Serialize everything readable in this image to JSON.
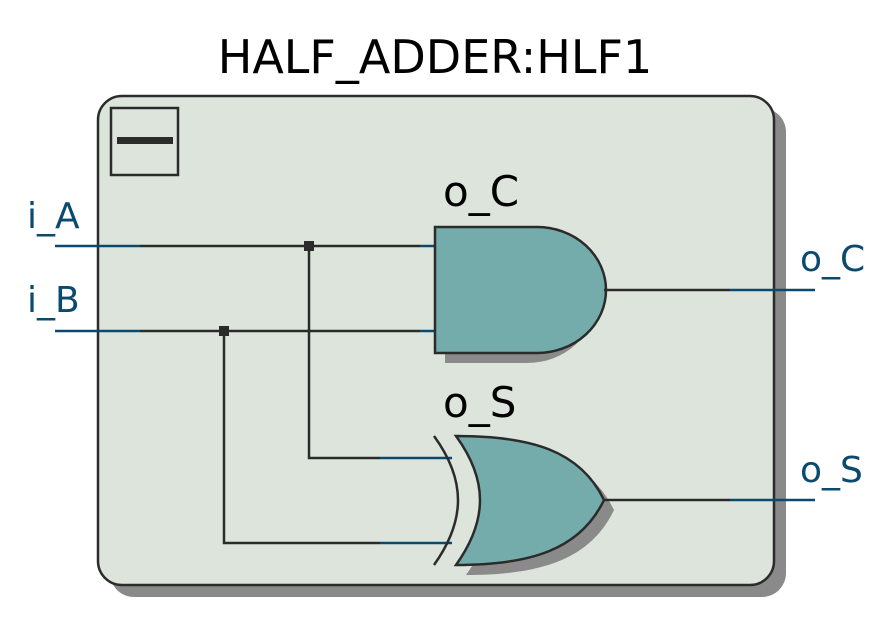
{
  "diagram": {
    "title": "HALF_ADDER:HLF1",
    "colors": {
      "block_fill": "#dce4dc",
      "block_border": "#2b2b2b",
      "shadow": "#8a8a8a",
      "gate_fill": "#74acac",
      "wire_blue": "#0b4a6e",
      "wire_dark": "#2b2b2b",
      "port_text": "#0b4a6e"
    },
    "collapse_icon": "minus-icon",
    "inputs": [
      {
        "label": "i_A"
      },
      {
        "label": "i_B"
      }
    ],
    "outputs": [
      {
        "label": "o_C"
      },
      {
        "label": "o_S"
      }
    ],
    "gates": [
      {
        "type": "AND",
        "label": "o_C"
      },
      {
        "type": "XOR",
        "label": "o_S"
      }
    ]
  }
}
